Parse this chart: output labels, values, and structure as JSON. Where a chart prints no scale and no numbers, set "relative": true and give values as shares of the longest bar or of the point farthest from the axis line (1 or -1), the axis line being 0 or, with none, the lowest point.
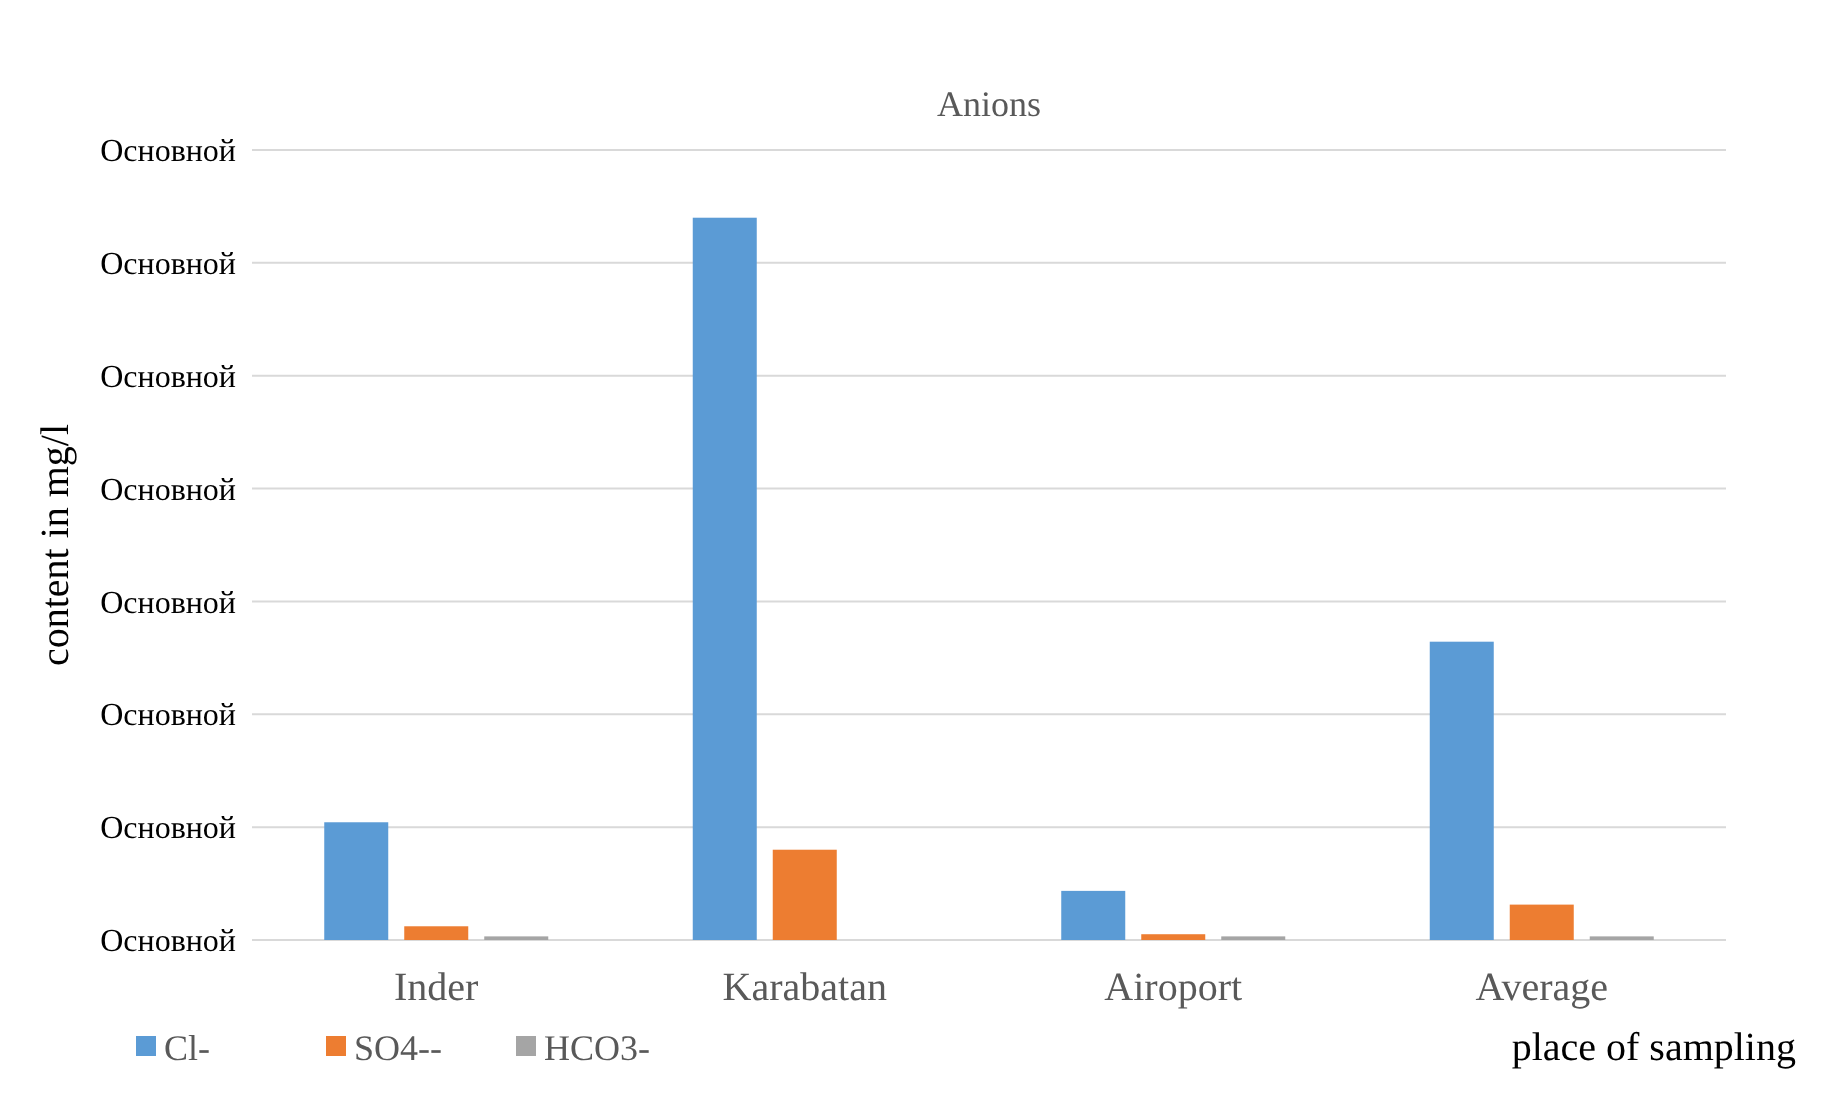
{
  "chart_data": {
    "type": "bar",
    "title": "Anions",
    "xlabel": "place of sampling",
    "ylabel": "content  in mg/l",
    "relative": true,
    "categories": [
      "Inder",
      "Karabatan",
      "Airoport",
      "Average"
    ],
    "series": [
      {
        "name": "Cl-",
        "color": "#5b9bd5",
        "values": [
          0.163,
          1,
          0.068,
          0.413
        ]
      },
      {
        "name": "SO4--",
        "color": "#ed7d31",
        "values": [
          0.019,
          0.125,
          0.008,
          0.049
        ]
      },
      {
        "name": "HCO3-",
        "color": "#a5a5a5",
        "values": [
          0.005,
          null,
          0.005,
          0.005
        ]
      }
    ],
    "annotations": [
      "Основной",
      "Основной",
      "Основной",
      "Основной",
      "Основной",
      "Основной",
      "Основной",
      "Основной"
    ],
    "grid": "y",
    "legend": "bottom left"
  }
}
